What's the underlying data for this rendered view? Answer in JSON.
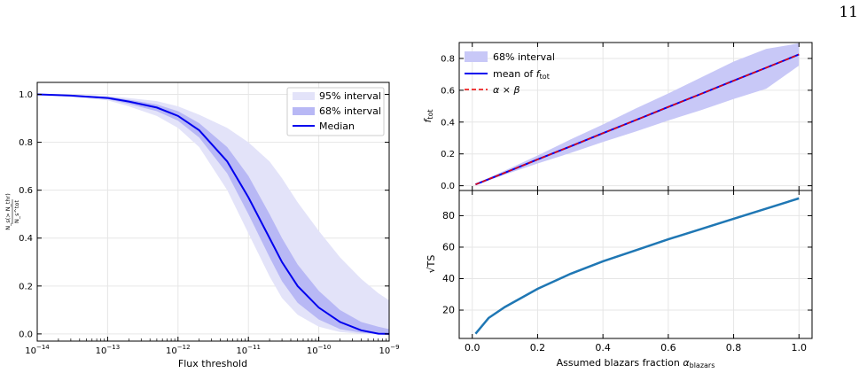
{
  "page_number": "11",
  "chart_data": [
    {
      "type": "area",
      "x_scale": "log",
      "xlim": [
        1e-14,
        1e-09
      ],
      "ylim": [
        -0.03,
        1.05
      ],
      "xlabel": "Flux threshold",
      "ylabel_num": "N_s(> N_thr)",
      "ylabel_den": "N_s^tot",
      "x_ticks": [
        {
          "value": 1e-14,
          "base": "10",
          "exp": "−14"
        },
        {
          "value": 1e-13,
          "base": "10",
          "exp": "−13"
        },
        {
          "value": 1e-12,
          "base": "10",
          "exp": "−12"
        },
        {
          "value": 1e-11,
          "base": "10",
          "exp": "−11"
        },
        {
          "value": 1e-10,
          "base": "10",
          "exp": "−10"
        },
        {
          "value": 1e-09,
          "base": "10",
          "exp": "−9"
        }
      ],
      "y_ticks": [
        "0.0",
        "0.2",
        "0.4",
        "0.6",
        "0.8",
        "1.0"
      ],
      "legend": {
        "position": "upper right",
        "entries": [
          "95% interval",
          "68% interval",
          "Median"
        ]
      },
      "x": [
        1e-14,
        3e-14,
        1e-13,
        2e-13,
        5e-13,
        1e-12,
        2e-12,
        5e-12,
        1e-11,
        2e-11,
        3e-11,
        5e-11,
        1e-10,
        2e-10,
        4e-10,
        7e-10,
        1e-09
      ],
      "series": [
        {
          "name": "Median",
          "color": "#0000ee",
          "values": [
            1.0,
            0.995,
            0.985,
            0.97,
            0.945,
            0.91,
            0.85,
            0.72,
            0.57,
            0.4,
            0.3,
            0.2,
            0.11,
            0.05,
            0.015,
            0.001,
            0.0
          ]
        },
        {
          "name": "68% interval",
          "color": "#b8b8f5",
          "lower": [
            1.0,
            0.993,
            0.98,
            0.96,
            0.93,
            0.89,
            0.82,
            0.67,
            0.5,
            0.32,
            0.22,
            0.13,
            0.06,
            0.02,
            0.005,
            0.0,
            0.0
          ],
          "upper": [
            1.0,
            0.997,
            0.99,
            0.978,
            0.958,
            0.93,
            0.88,
            0.78,
            0.66,
            0.5,
            0.4,
            0.29,
            0.18,
            0.1,
            0.05,
            0.03,
            0.02
          ]
        },
        {
          "name": "95% interval",
          "color": "#e3e3f9",
          "lower": [
            1.0,
            0.99,
            0.975,
            0.95,
            0.91,
            0.86,
            0.78,
            0.6,
            0.42,
            0.24,
            0.15,
            0.08,
            0.03,
            0.008,
            0.0,
            0.0,
            0.0
          ],
          "upper": [
            1.0,
            0.998,
            0.993,
            0.985,
            0.972,
            0.95,
            0.915,
            0.86,
            0.8,
            0.72,
            0.65,
            0.55,
            0.43,
            0.32,
            0.23,
            0.17,
            0.14
          ]
        }
      ]
    },
    {
      "type": "line",
      "xlim": [
        -0.04,
        1.04
      ],
      "ylim": [
        -0.03,
        0.9
      ],
      "ylabel": "f_tot",
      "y_ticks": [
        "0.0",
        "0.2",
        "0.4",
        "0.6",
        "0.8"
      ],
      "legend": {
        "position": "upper left",
        "entries": [
          "68% interval",
          "mean of f_tot",
          "α × β"
        ]
      },
      "x": [
        0.01,
        0.1,
        0.2,
        0.3,
        0.4,
        0.5,
        0.6,
        0.7,
        0.8,
        0.9,
        1.0
      ],
      "series": [
        {
          "name": "mean of f_tot",
          "color": "#0000ee",
          "values": [
            0.008,
            0.082,
            0.165,
            0.247,
            0.33,
            0.412,
            0.495,
            0.577,
            0.66,
            0.742,
            0.825
          ]
        },
        {
          "name": "α × β",
          "color": "#ee0000",
          "values": [
            0.008,
            0.082,
            0.165,
            0.247,
            0.33,
            0.412,
            0.495,
            0.577,
            0.66,
            0.742,
            0.825
          ]
        },
        {
          "name": "68% interval",
          "color": "#c8c8f7",
          "lower": [
            0.005,
            0.07,
            0.14,
            0.205,
            0.275,
            0.34,
            0.41,
            0.475,
            0.545,
            0.61,
            0.755
          ],
          "upper": [
            0.012,
            0.095,
            0.19,
            0.29,
            0.385,
            0.485,
            0.58,
            0.68,
            0.78,
            0.86,
            0.895
          ]
        }
      ]
    },
    {
      "type": "line",
      "xlim": [
        -0.04,
        1.04
      ],
      "ylim": [
        2,
        96
      ],
      "xlabel": "Assumed blazars fraction",
      "xlabel_symbol": "α",
      "xlabel_sub": "blazars",
      "ylabel": "√TS",
      "x_ticks": [
        "0.0",
        "0.2",
        "0.4",
        "0.6",
        "0.8",
        "1.0"
      ],
      "y_ticks": [
        "20",
        "40",
        "60",
        "80"
      ],
      "x": [
        0.01,
        0.05,
        0.1,
        0.2,
        0.3,
        0.4,
        0.5,
        0.6,
        0.7,
        0.8,
        0.9,
        1.0
      ],
      "series": [
        {
          "name": "",
          "color": "#1f77b4",
          "values": [
            5,
            15,
            22,
            33.5,
            43,
            51,
            58,
            65,
            71.5,
            78,
            84.5,
            91
          ]
        }
      ]
    }
  ]
}
